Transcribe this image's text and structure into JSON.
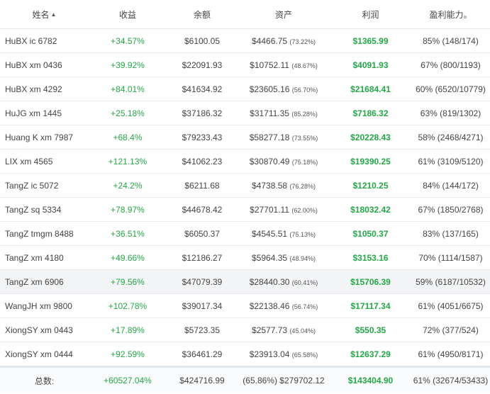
{
  "headers": {
    "name": "姓名",
    "return": "收益",
    "balance": "余额",
    "assets": "资产",
    "profit": "利润",
    "profit_ability": "盈利能力。"
  },
  "rows": [
    {
      "name": "HuBX ic 6782",
      "return": "+34.57%",
      "balance": "$6100.05",
      "assets": "$4466.75",
      "assets_pct": "(73.22%)",
      "profit": "$1365.99",
      "ability": "85% (148/174)"
    },
    {
      "name": "HuBX xm 0436",
      "return": "+39.92%",
      "balance": "$22091.93",
      "assets": "$10752.11",
      "assets_pct": "(48.67%)",
      "profit": "$4091.93",
      "ability": "67% (800/1193)"
    },
    {
      "name": "HuBX xm 4292",
      "return": "+84.01%",
      "balance": "$41634.92",
      "assets": "$23605.16",
      "assets_pct": "(56.70%)",
      "profit": "$21684.41",
      "ability": "60% (6520/10779)"
    },
    {
      "name": "HuJG xm 1445",
      "return": "+25.18%",
      "balance": "$37186.32",
      "assets": "$31711.35",
      "assets_pct": "(85.28%)",
      "profit": "$7186.32",
      "ability": "63% (819/1302)"
    },
    {
      "name": "Huang K xm 7987",
      "return": "+68.4%",
      "balance": "$79233.43",
      "assets": "$58277.18",
      "assets_pct": "(73.55%)",
      "profit": "$20228.43",
      "ability": "58% (2468/4271)"
    },
    {
      "name": "LIX xm 4565",
      "return": "+121.13%",
      "balance": "$41062.23",
      "assets": "$30870.49",
      "assets_pct": "(75.18%)",
      "profit": "$19390.25",
      "ability": "61% (3109/5120)"
    },
    {
      "name": "TangZ ic 5072",
      "return": "+24.2%",
      "balance": "$6211.68",
      "assets": "$4738.58",
      "assets_pct": "(76.28%)",
      "profit": "$1210.25",
      "ability": "84% (144/172)"
    },
    {
      "name": "TangZ sq 5334",
      "return": "+78.97%",
      "balance": "$44678.42",
      "assets": "$27701.11",
      "assets_pct": "(62.00%)",
      "profit": "$18032.42",
      "ability": "67% (1850/2768)"
    },
    {
      "name": "TangZ tmgm 8488",
      "return": "+36.51%",
      "balance": "$6050.37",
      "assets": "$4545.51",
      "assets_pct": "(75.13%)",
      "profit": "$1050.37",
      "ability": "83% (137/165)"
    },
    {
      "name": "TangZ xm 4180",
      "return": "+49.66%",
      "balance": "$12186.27",
      "assets": "$5964.35",
      "assets_pct": "(48.94%)",
      "profit": "$3153.16",
      "ability": "70% (1114/1587)"
    },
    {
      "name": "TangZ xm 6906",
      "return": "+79.56%",
      "balance": "$47079.39",
      "assets": "$28440.30",
      "assets_pct": "(60.41%)",
      "profit": "$15706.39",
      "ability": "59% (6187/10532)"
    },
    {
      "name": "WangJH xm 9800",
      "return": "+102.78%",
      "balance": "$39017.34",
      "assets": "$22138.46",
      "assets_pct": "(56.74%)",
      "profit": "$17117.34",
      "ability": "61% (4051/6675)"
    },
    {
      "name": "XiongSY xm 0443",
      "return": "+17.89%",
      "balance": "$5723.35",
      "assets": "$2577.73",
      "assets_pct": "(45.04%)",
      "profit": "$550.35",
      "ability": "72% (377/524)"
    },
    {
      "name": "XiongSY xm 0444",
      "return": "+92.59%",
      "balance": "$36461.29",
      "assets": "$23913.04",
      "assets_pct": "(65.58%)",
      "profit": "$12637.29",
      "ability": "61% (4950/8171)"
    }
  ],
  "highlighted_row": "TangZ xm 6906",
  "totals": {
    "label": "总数:",
    "return": "+60527.04%",
    "balance": "$424716.99",
    "assets": "(65.86%) $279702.12",
    "profit": "$143404.90",
    "ability": "61% (32674/53433)"
  },
  "colors": {
    "positive": "#22a845",
    "border": "#e8eaed",
    "highlight": "#f3f4f6"
  }
}
